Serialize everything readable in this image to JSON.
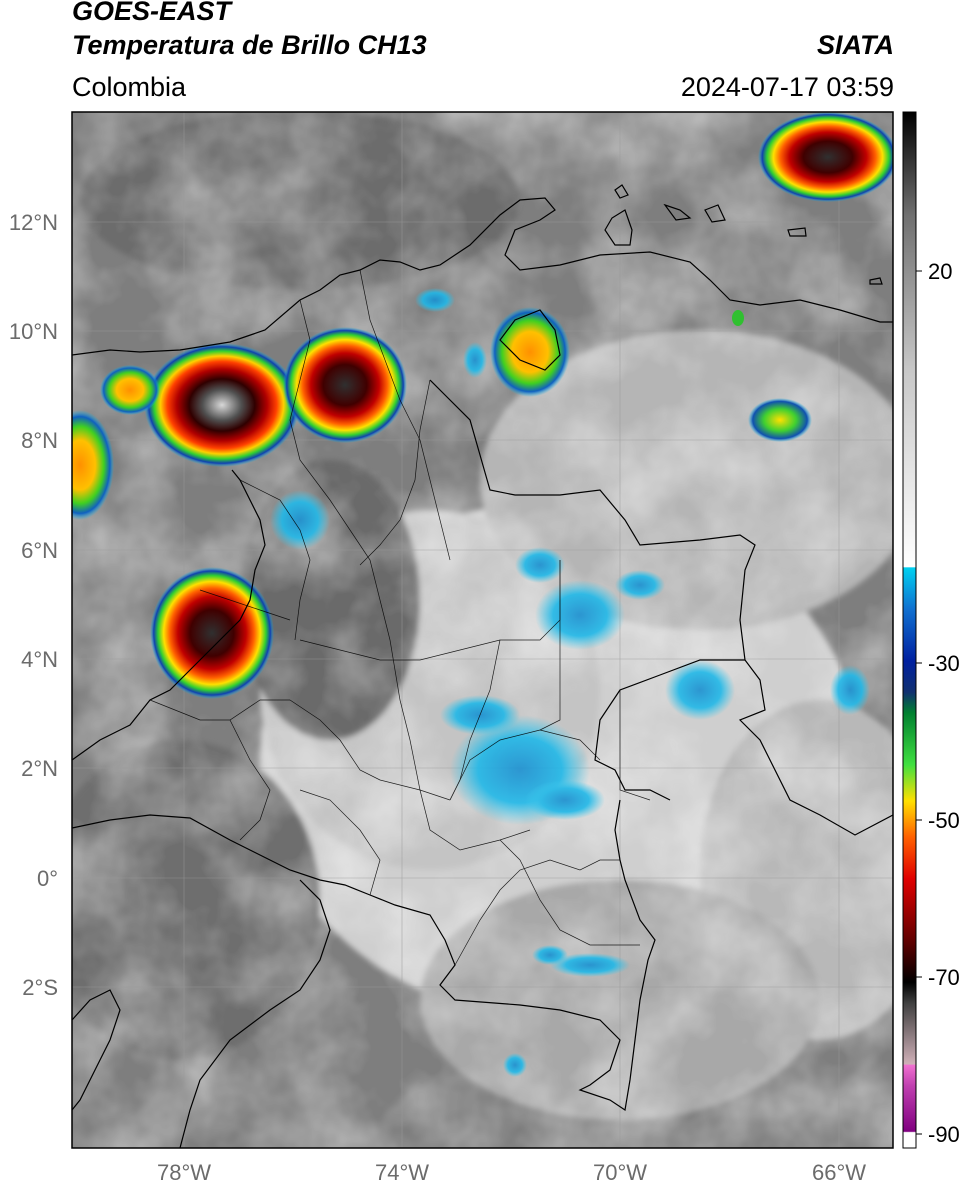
{
  "header": {
    "satellite": "GOES-EAST",
    "product": "Temperatura de Brillo CH13",
    "region": "Colombia",
    "agency": "SIATA",
    "datetime": "2024-07-17 03:59"
  },
  "axes": {
    "lat_labels": [
      "12°N",
      "10°N",
      "8°N",
      "6°N",
      "4°N",
      "2°N",
      "0°",
      "2°S"
    ],
    "lon_labels": [
      "78°W",
      "74°W",
      "70°W",
      "66°W"
    ]
  },
  "colorbar": {
    "ticks": [
      "20",
      "-30",
      "-50",
      "-70",
      "-90"
    ],
    "colors": {
      "gray_warm": "#8a8a8a",
      "gray_cold": "#f2f2f2",
      "cyan": "#00c8f0",
      "blue": "#1030a0",
      "green": "#20c020",
      "yellow": "#f8e000",
      "orange": "#ff8000",
      "red": "#e00000",
      "dark_red": "#600000",
      "black": "#000000",
      "magenta": "#d040c0",
      "purple": "#800080"
    }
  }
}
